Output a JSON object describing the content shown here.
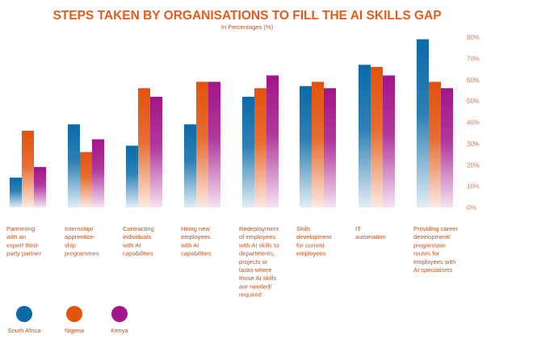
{
  "chart_data": {
    "type": "bar",
    "title": "STEPS TAKEN BY ORGANISATIONS TO FILL THE AI SKILLS GAP",
    "subtitle": "In Percentages (%)",
    "xlabel": "",
    "ylabel": "",
    "ylim": [
      0,
      80
    ],
    "yticks": [
      "0%",
      "10%",
      "20%",
      "30%",
      "40%",
      "50%",
      "60%",
      "70%",
      "80%"
    ],
    "grid": false,
    "legend_position": "bottom-left",
    "categories": [
      "Partnering with an expert third-party partner",
      "Internship/ apprentice-ship programmes",
      "Contracting individuals with AI capabilities",
      "Hiring new employees with AI capabilities",
      "Redeployment of employees with AI skills to departments, projects or tasks where those AI skills are needed/ required",
      "Skills development for current employees",
      "IT automation",
      "Providing career development/ progression routes for employees with AI specialisms"
    ],
    "category_lines": [
      [
        "Partnering",
        "with an",
        "expert third-",
        "party partner"
      ],
      [
        "Internship/",
        "apprentice-",
        "ship",
        "programmes"
      ],
      [
        "Contracting",
        "individuals",
        "with AI",
        "capabilities"
      ],
      [
        "Hiring new",
        "employees",
        "with AI",
        "capabilities"
      ],
      [
        "Redeployment",
        "of employees",
        "with AI skills to",
        "departments,",
        "projects or",
        "tasks where",
        "those AI skills",
        "are needed/",
        "required"
      ],
      [
        "Skills",
        "development",
        "for current",
        "employees"
      ],
      [
        "IT",
        "automation"
      ],
      [
        "Providing career",
        "development/",
        "progression",
        "routes for",
        "employees with",
        "AI specialisms"
      ]
    ],
    "series": [
      {
        "name": "South Africa",
        "color": "#0a6aa8",
        "values": [
          14,
          39,
          29,
          39,
          52,
          57,
          67,
          79
        ]
      },
      {
        "name": "Nigeria",
        "color": "#e2530c",
        "values": [
          36,
          26,
          56,
          59,
          56,
          59,
          66,
          59
        ]
      },
      {
        "name": "Kenya",
        "color": "#a3158a",
        "values": [
          19,
          32,
          52,
          59,
          62,
          56,
          62,
          56
        ]
      }
    ]
  },
  "colors": {
    "title": "#e45c1e",
    "text": "#c2531e",
    "tick": "#e07a45"
  }
}
